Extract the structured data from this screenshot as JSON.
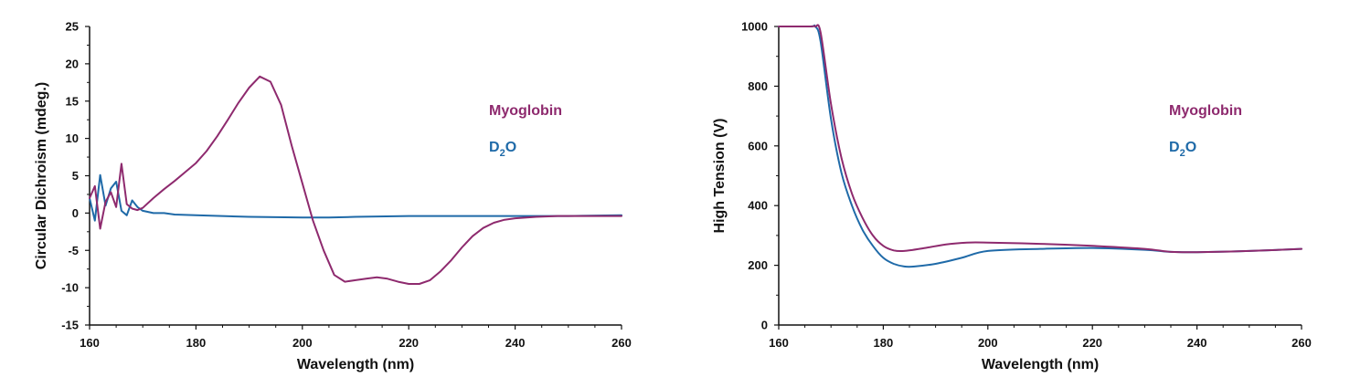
{
  "colors": {
    "myoglobin": "#8e2a6e",
    "d2o": "#1f6aa8",
    "axis": "#111111"
  },
  "chart_data": [
    {
      "type": "line",
      "xlabel": "Wavelength (nm)",
      "ylabel": "Circular Dichroism (mdeg.)",
      "xlim": [
        160,
        260
      ],
      "ylim": [
        -15,
        25
      ],
      "xticks": [
        160,
        180,
        200,
        220,
        240,
        260
      ],
      "yticks": [
        -15,
        -10,
        -5,
        0,
        5,
        10,
        15,
        20,
        25
      ],
      "legend": [
        {
          "label": "Myoglobin",
          "sub": "",
          "tail": "",
          "color_key": "myoglobin"
        },
        {
          "label": "D",
          "sub": "2",
          "tail": "O",
          "color_key": "d2o"
        }
      ],
      "series": [
        {
          "name": "Myoglobin",
          "color_key": "myoglobin",
          "x": [
            160,
            161,
            162,
            163,
            164,
            165,
            166,
            167,
            168,
            169,
            170,
            172,
            174,
            176,
            178,
            180,
            182,
            184,
            186,
            188,
            190,
            192,
            194,
            196,
            198,
            200,
            202,
            204,
            206,
            208,
            210,
            212,
            214,
            216,
            218,
            220,
            222,
            224,
            226,
            228,
            230,
            232,
            234,
            236,
            238,
            240,
            244,
            248,
            252,
            256,
            260
          ],
          "y": [
            2,
            3.6,
            -2.1,
            1.5,
            2.8,
            0.8,
            6.6,
            1.2,
            0.6,
            0.4,
            0.7,
            2,
            3.2,
            4.3,
            5.5,
            6.7,
            8.3,
            10.3,
            12.5,
            14.8,
            16.8,
            18.3,
            17.6,
            14.5,
            9,
            4,
            -1,
            -5,
            -8.3,
            -9.2,
            -9,
            -8.8,
            -8.6,
            -8.8,
            -9.2,
            -9.5,
            -9.5,
            -9,
            -7.8,
            -6.3,
            -4.6,
            -3.1,
            -2,
            -1.3,
            -0.9,
            -0.7,
            -0.5,
            -0.4,
            -0.4,
            -0.4,
            -0.4
          ]
        },
        {
          "name": "D2O",
          "color_key": "d2o",
          "x": [
            160,
            161,
            162,
            163,
            164,
            165,
            166,
            167,
            168,
            169,
            170,
            172,
            174,
            176,
            180,
            190,
            200,
            205,
            210,
            220,
            230,
            240,
            250,
            260
          ],
          "y": [
            2,
            -1,
            5.1,
            1,
            3.3,
            4.2,
            0.3,
            -0.3,
            1.7,
            0.8,
            0.3,
            0,
            0,
            -0.2,
            -0.3,
            -0.5,
            -0.6,
            -0.6,
            -0.5,
            -0.4,
            -0.4,
            -0.4,
            -0.4,
            -0.3
          ]
        }
      ]
    },
    {
      "type": "line",
      "xlabel": "Wavelength (nm)",
      "ylabel": "High Tension (V)",
      "xlim": [
        160,
        260
      ],
      "ylim": [
        0,
        1000
      ],
      "xticks": [
        160,
        180,
        200,
        220,
        240,
        260
      ],
      "yticks": [
        0,
        200,
        400,
        600,
        800,
        1000
      ],
      "legend": [
        {
          "label": "Myoglobin",
          "sub": "",
          "tail": "",
          "color_key": "myoglobin"
        },
        {
          "label": "D",
          "sub": "2",
          "tail": "O",
          "color_key": "d2o"
        }
      ],
      "series": [
        {
          "name": "Myoglobin",
          "color_key": "myoglobin",
          "x": [
            160,
            166,
            167,
            168,
            170,
            172,
            174,
            176,
            178,
            180,
            182,
            184,
            188,
            192,
            196,
            200,
            210,
            220,
            230,
            235,
            240,
            250,
            260
          ],
          "y": [
            1000,
            1000,
            1000,
            980,
            740,
            560,
            440,
            360,
            300,
            265,
            250,
            248,
            258,
            270,
            276,
            276,
            272,
            265,
            255,
            245,
            244,
            248,
            255
          ],
          "smooth": true
        },
        {
          "name": "D2O",
          "color_key": "d2o",
          "x": [
            160,
            166,
            167,
            168,
            170,
            172,
            174,
            176,
            178,
            180,
            182,
            184,
            186,
            190,
            195,
            200,
            210,
            220,
            230,
            235,
            240,
            250,
            260
          ],
          "y": [
            1000,
            1000,
            1000,
            950,
            690,
            510,
            400,
            320,
            265,
            225,
            205,
            196,
            196,
            205,
            225,
            248,
            255,
            258,
            252,
            245,
            244,
            248,
            255
          ],
          "smooth": true
        }
      ]
    }
  ]
}
